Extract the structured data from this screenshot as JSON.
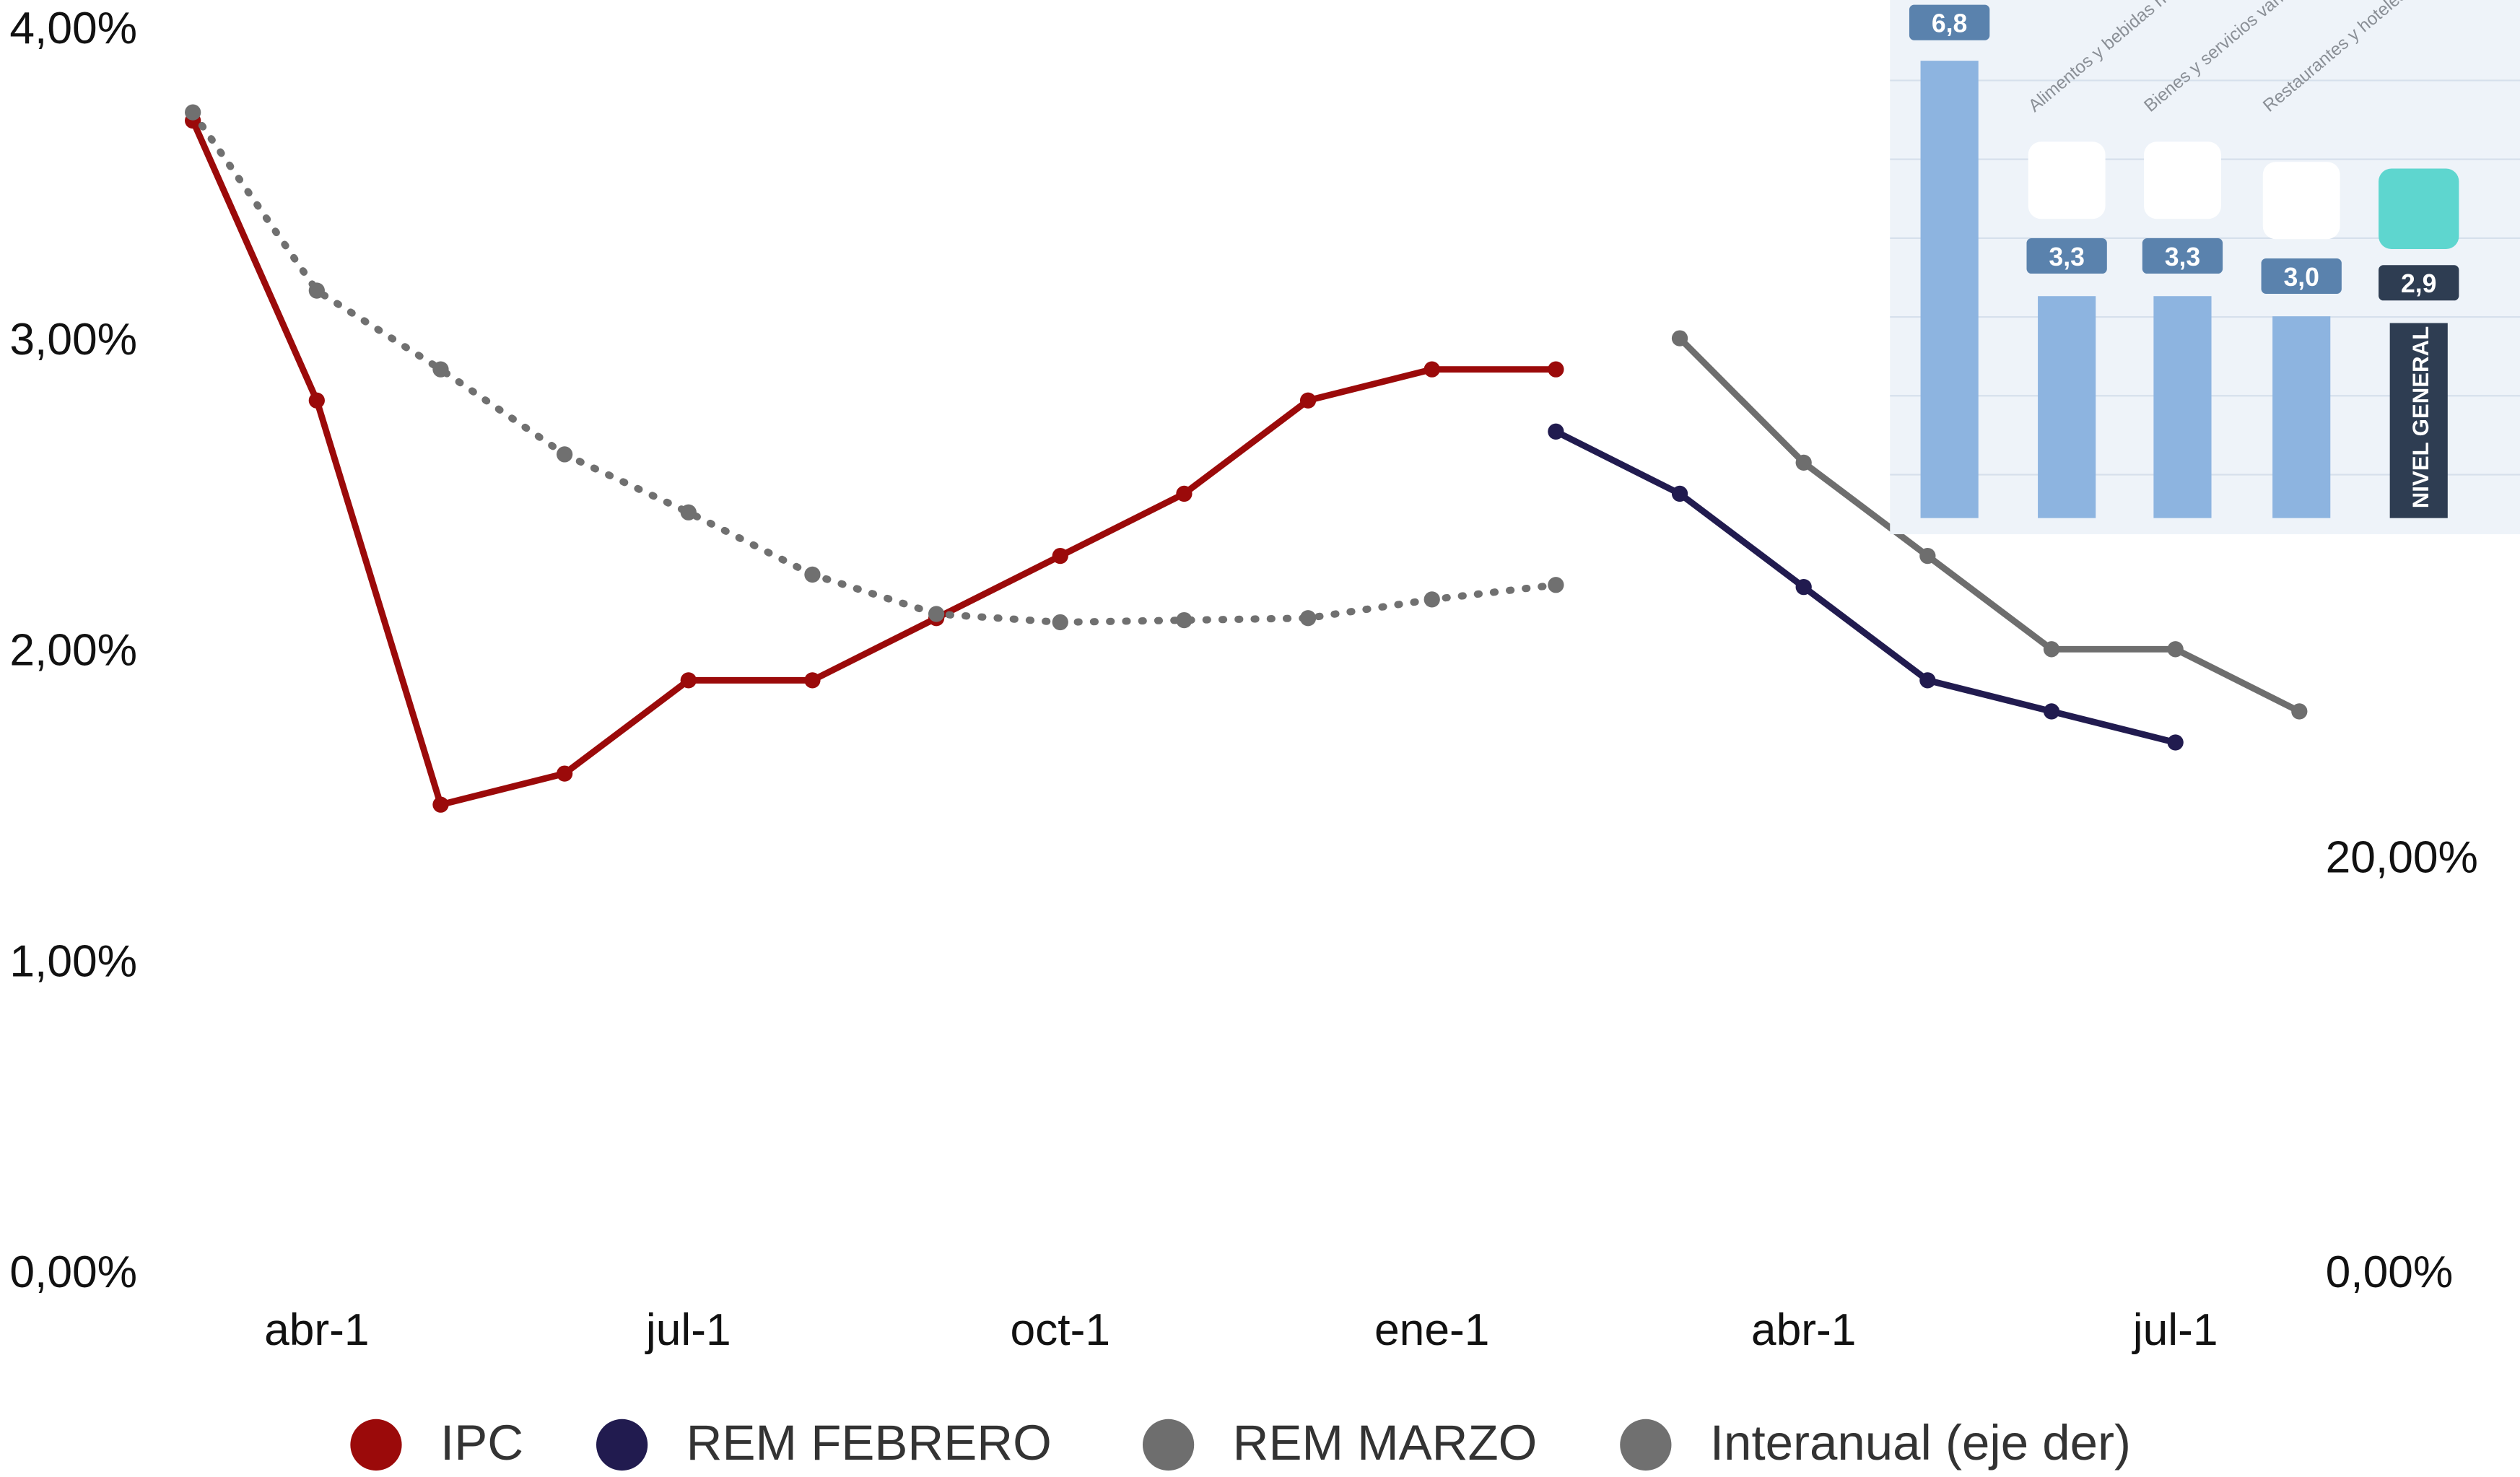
{
  "chart_data": {
    "type": "line",
    "categories": [
      null,
      "abr-1",
      null,
      null,
      "jul-1",
      null,
      null,
      "oct-1",
      null,
      null,
      "ene-1",
      null,
      null,
      "abr-1",
      null,
      null,
      "jul-1",
      null
    ],
    "series": [
      {
        "name": "IPC",
        "color": "#9b0a0a",
        "values": [
          3.7,
          2.8,
          1.5,
          1.6,
          1.9,
          1.9,
          2.1,
          2.3,
          2.5,
          2.8,
          2.9,
          2.9,
          null,
          null,
          null,
          null,
          null,
          null
        ]
      },
      {
        "name": "REM FEBRERO",
        "color": "#211b4f",
        "values": [
          null,
          null,
          null,
          null,
          null,
          null,
          null,
          null,
          null,
          null,
          null,
          2.7,
          2.5,
          2.2,
          1.9,
          1.8,
          1.7,
          null
        ]
      },
      {
        "name": "REM MARZO",
        "color": "#6e6e6e",
        "values": [
          null,
          null,
          null,
          null,
          null,
          null,
          null,
          null,
          null,
          null,
          null,
          null,
          3.0,
          2.6,
          2.3,
          2.0,
          2.0,
          1.8
        ]
      },
      {
        "name": "Interanual (eje der)",
        "color": "#707070",
        "axis": "y2",
        "line_style": "dotted",
        "values": [
          55.9,
          47.3,
          43.5,
          39.4,
          36.6,
          33.6,
          31.7,
          31.3,
          31.4,
          31.5,
          32.4,
          33.1,
          null,
          null,
          null,
          null,
          null,
          null
        ]
      }
    ],
    "ylim": [
      0,
      4
    ],
    "yticks": [
      {
        "value": 0,
        "label": "0,00%"
      },
      {
        "value": 1,
        "label": "1,00%"
      },
      {
        "value": 2,
        "label": "2,00%"
      },
      {
        "value": 3,
        "label": "3,00%"
      },
      {
        "value": 4,
        "label": "4,00%"
      }
    ],
    "y2lim": [
      0,
      60
    ],
    "y2ticks": [
      {
        "value": 0,
        "label": "0,00%"
      },
      {
        "value": 20,
        "label": "20,00%"
      }
    ],
    "legend": "bottom"
  },
  "inset": {
    "categories": [
      null,
      "Alimentos y bebidas no alcohólicas",
      "Bienes y servicios varios",
      "Restaurantes y hoteles",
      "NIVEL GENERAL"
    ],
    "values": [
      6.8,
      3.3,
      3.3,
      3.0,
      2.9
    ],
    "value_labels": [
      "6,8",
      "3,3",
      "3,3",
      "3,0",
      "2,9"
    ]
  }
}
